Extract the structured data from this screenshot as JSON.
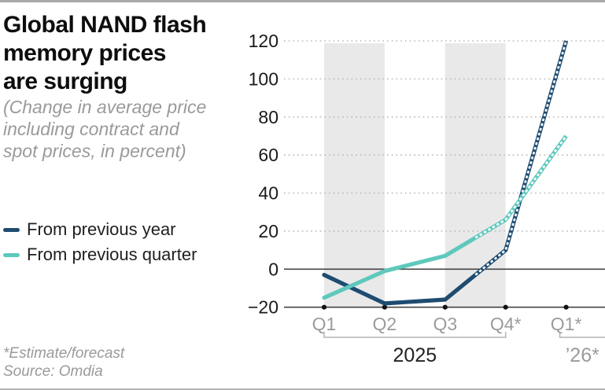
{
  "header": {
    "title_lines": [
      "Global NAND flash",
      "memory prices",
      "are surging"
    ],
    "subtitle_lines": [
      "(Change in average price",
      "including contract and",
      "spot prices, in percent)"
    ]
  },
  "legend": {
    "items": [
      {
        "label": "From previous year",
        "color": "#1e4c71"
      },
      {
        "label": "From previous quarter",
        "color": "#5fc8bd"
      }
    ]
  },
  "footer": {
    "note": "*Estimate/forecast",
    "source": "Source: Omdia"
  },
  "chart_data": {
    "type": "line",
    "categories": [
      "Q1",
      "Q2",
      "Q3",
      "Q4*",
      "Q1*"
    ],
    "series": [
      {
        "name": "From previous year",
        "color": "#1e4c71",
        "values": [
          -3,
          -18,
          -16,
          10,
          120
        ],
        "forecast_from_index": 3
      },
      {
        "name": "From previous quarter",
        "color": "#5fc8bd",
        "values": [
          -15,
          -1,
          7,
          26,
          70
        ],
        "forecast_from_index": 3
      }
    ],
    "yticks": [
      -20,
      0,
      20,
      40,
      60,
      80,
      100,
      120
    ],
    "ylim": [
      -20,
      120
    ],
    "x_group_labels": [
      {
        "label": "2025",
        "from": 0,
        "to": 3,
        "color": "#222222",
        "tick_right": true,
        "to_edge": false
      },
      {
        "label": "’26*",
        "from": 4,
        "to": 4,
        "color": "#9b9b9b",
        "tick_right": false,
        "to_edge": true
      }
    ],
    "shaded_band_category_spans": [
      [
        0,
        1
      ],
      [
        2,
        3
      ]
    ],
    "grid": "dotted horizontal, dark zero line, dark baseline at -20 with tick dots",
    "legend_position": "left",
    "colors": {
      "band": "#e9e9e9",
      "gridline": "#b9b9b9",
      "axis": "#454545",
      "tick_dot": "#111111",
      "y_label": "#1a1a1a",
      "x_label": "#9b9b9b",
      "bracket": "#b3b3b3",
      "forecast_gap": "#ffffff"
    }
  }
}
